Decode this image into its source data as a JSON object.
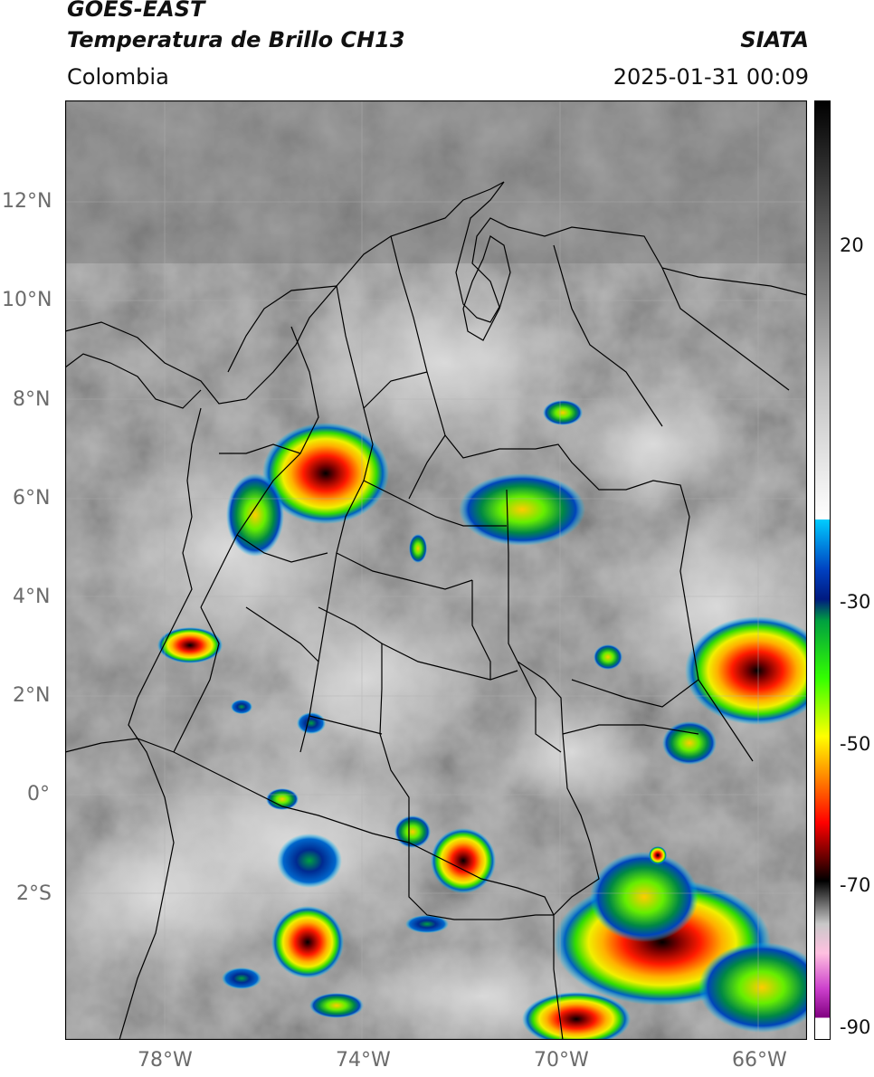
{
  "header": {
    "satellite": "GOES-EAST",
    "product": "Temperatura de Brillo CH13",
    "region": "Colombia",
    "agency": "SIATA",
    "datetime": "2025-01-31 00:09"
  },
  "map": {
    "lat_labels": [
      "12°N",
      "10°N",
      "8°N",
      "6°N",
      "4°N",
      "2°N",
      "0°",
      "2°S"
    ],
    "lon_labels": [
      "78°W",
      "74°W",
      "70°W",
      "66°W"
    ],
    "extent": {
      "lon_min": -80.0,
      "lon_max": -65.0,
      "lat_min": -4.9,
      "lat_max": 14.1
    },
    "background_gray": "#8a8a8a",
    "cloud_white": "#d9d9d9"
  },
  "colorbar": {
    "tick_labels": [
      "20",
      "-30",
      "-50",
      "-70",
      "-90"
    ],
    "range": [
      -92,
      38
    ],
    "stops": [
      {
        "t": 38,
        "c": "#000000"
      },
      {
        "t": 20,
        "c": "#5a5a5a"
      },
      {
        "t": 0,
        "c": "#bdbdbd"
      },
      {
        "t": -20,
        "c": "#ffffff"
      },
      {
        "t": -20.1,
        "c": "#00ccff"
      },
      {
        "t": -27,
        "c": "#0040c0"
      },
      {
        "t": -31,
        "c": "#001a80"
      },
      {
        "t": -34,
        "c": "#00a040"
      },
      {
        "t": -42,
        "c": "#33ff00"
      },
      {
        "t": -50,
        "c": "#ffff00"
      },
      {
        "t": -56,
        "c": "#ff8000"
      },
      {
        "t": -62,
        "c": "#ff0000"
      },
      {
        "t": -67,
        "c": "#600000"
      },
      {
        "t": -70,
        "c": "#000000"
      },
      {
        "t": -76,
        "c": "#c8c8c8"
      },
      {
        "t": -80,
        "c": "#ffc0e0"
      },
      {
        "t": -85,
        "c": "#cc40cc"
      },
      {
        "t": -89,
        "c": "#800080"
      },
      {
        "t": -89.1,
        "c": "#ffffff"
      },
      {
        "t": -92,
        "c": "#ffffff"
      }
    ]
  }
}
